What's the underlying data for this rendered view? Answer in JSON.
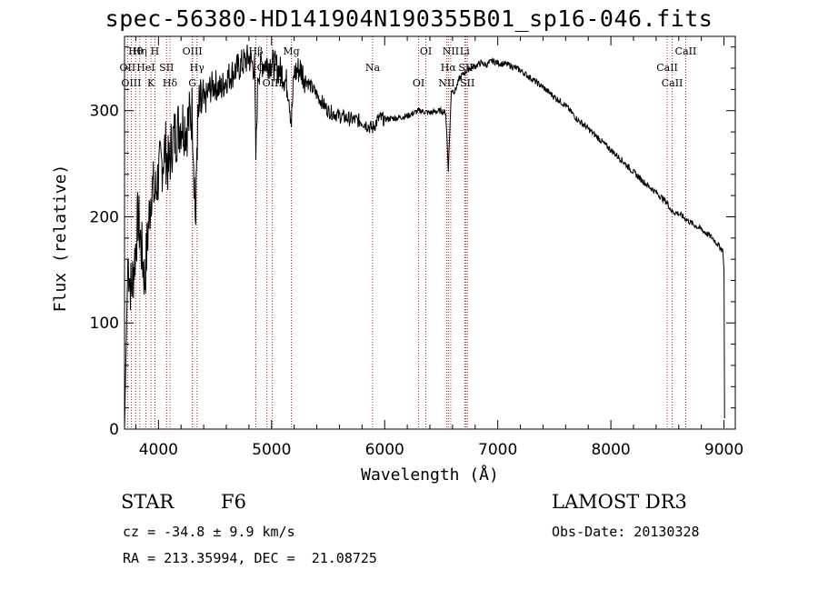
{
  "title": "spec-56380-HD141904N190355B01_sp16-046.fits",
  "info": {
    "class": "STAR",
    "subclass": "F6",
    "survey": "LAMOST DR3",
    "cz": "cz = -34.8 ± 9.9 km/s",
    "obs_date": "Obs-Date: 20130328",
    "coords": "RA = 213.35994, DEC =  21.08725"
  },
  "chart_data": {
    "type": "line",
    "title": "spec-56380-HD141904N190355B01_sp16-046.fits",
    "xlabel": "Wavelength (Å)",
    "ylabel": "Flux (relative)",
    "xlim": [
      3700,
      9100
    ],
    "ylim": [
      0,
      370
    ],
    "xticks": [
      4000,
      5000,
      6000,
      7000,
      8000,
      9000
    ],
    "yticks": [
      0,
      100,
      200,
      300
    ],
    "series": [
      {
        "name": "flux",
        "x": [
          3700,
          3730,
          3760,
          3790,
          3820,
          3850,
          3880,
          3910,
          3940,
          3970,
          4000,
          4030,
          4060,
          4090,
          4120,
          4160,
          4200,
          4250,
          4300,
          4330,
          4340,
          4360,
          4400,
          4450,
          4500,
          4550,
          4600,
          4650,
          4700,
          4750,
          4800,
          4850,
          4861,
          4880,
          4920,
          4960,
          5000,
          5050,
          5100,
          5150,
          5175,
          5200,
          5250,
          5300,
          5400,
          5500,
          5600,
          5700,
          5800,
          5890,
          5950,
          6000,
          6100,
          6200,
          6300,
          6400,
          6500,
          6540,
          6563,
          6590,
          6620,
          6660,
          6700,
          6750,
          6800,
          6850,
          6900,
          6950,
          7000,
          7100,
          7200,
          7300,
          7400,
          7500,
          7600,
          7700,
          7800,
          7900,
          8000,
          8100,
          8200,
          8300,
          8400,
          8500,
          8540,
          8600,
          8700,
          8800,
          8900,
          8960,
          8990,
          9000,
          9005
        ],
        "y": [
          0,
          160,
          130,
          160,
          200,
          170,
          140,
          190,
          230,
          220,
          240,
          250,
          265,
          245,
          270,
          280,
          290,
          285,
          300,
          190,
          270,
          300,
          305,
          320,
          325,
          320,
          330,
          335,
          340,
          345,
          350,
          340,
          255,
          335,
          345,
          345,
          345,
          340,
          335,
          320,
          290,
          335,
          340,
          330,
          315,
          300,
          295,
          292,
          290,
          283,
          293,
          292,
          293,
          295,
          300,
          298,
          300,
          298,
          245,
          320,
          318,
          330,
          335,
          340,
          342,
          345,
          343,
          347,
          345,
          343,
          338,
          330,
          322,
          313,
          305,
          292,
          283,
          273,
          263,
          253,
          242,
          232,
          223,
          213,
          205,
          203,
          195,
          188,
          180,
          172,
          168,
          150,
          10
        ]
      }
    ],
    "lines": [
      {
        "label": "Hθ",
        "wl": 3798
      },
      {
        "label": "OII",
        "wl": 3727
      },
      {
        "label": "OIII",
        "wl": 3760
      },
      {
        "label": "Hη",
        "wl": 3835
      },
      {
        "label": "HeI",
        "wl": 3889
      },
      {
        "label": "K",
        "wl": 3934
      },
      {
        "label": "H",
        "wl": 3969
      },
      {
        "label": "SII",
        "wl": 4072
      },
      {
        "label": "Hδ",
        "wl": 4102
      },
      {
        "label": "OIII",
        "wl": 4300
      },
      {
        "label": "Hγ",
        "wl": 4341
      },
      {
        "label": "G",
        "wl": 4300
      },
      {
        "label": "Hβ",
        "wl": 4861
      },
      {
        "label": "OIII",
        "wl": 4959
      },
      {
        "label": "OIII",
        "wl": 5007
      },
      {
        "label": "Mg",
        "wl": 5175
      },
      {
        "label": "Na",
        "wl": 5893
      },
      {
        "label": "OI",
        "wl": 6300
      },
      {
        "label": "OI",
        "wl": 6364
      },
      {
        "label": "Hα",
        "wl": 6563
      },
      {
        "label": "NII",
        "wl": 6548
      },
      {
        "label": "NII",
        "wl": 6584
      },
      {
        "label": "SII",
        "wl": 6717
      },
      {
        "label": "SII",
        "wl": 6731
      },
      {
        "label": "Li",
        "wl": 6708
      },
      {
        "label": "CaII",
        "wl": 8498
      },
      {
        "label": "CaII",
        "wl": 8542
      },
      {
        "label": "CaII",
        "wl": 8662
      }
    ]
  }
}
